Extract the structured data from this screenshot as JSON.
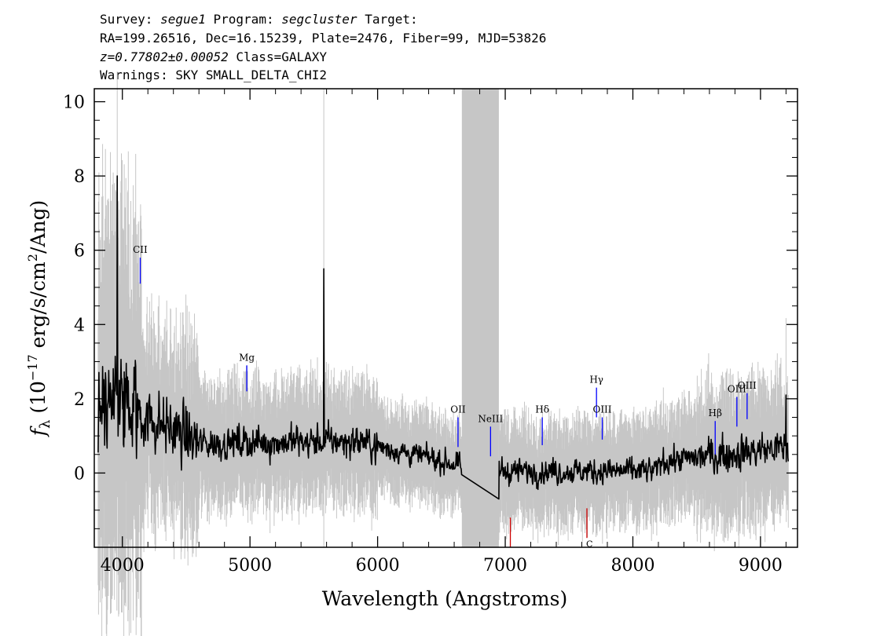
{
  "header": {
    "survey_label": "Survey:",
    "survey": "segue1",
    "program_label": "Program:",
    "program": "segcluster",
    "target_label": "Target:",
    "coords": "RA=199.26516, Dec=16.15239, Plate=2476, Fiber=99, MJD=53826",
    "redshift": "z=0.77802±0.00052",
    "class": "Class=GALAXY",
    "warnings": "Warnings: SKY SMALL_DELTA_CHI2"
  },
  "chart_data": {
    "type": "line",
    "xlabel": "Wavelength (Angstroms)",
    "ylabel_parts": {
      "f": "f",
      "sub": "λ",
      "open": " (10",
      "exp1": "−17",
      "mid": " erg/s/cm",
      "exp2": "2",
      "close": "/Ang)"
    },
    "xlim": [
      3780,
      9290
    ],
    "ylim": [
      -2.0,
      10.35
    ],
    "xticks": [
      4000,
      5000,
      6000,
      7000,
      8000,
      9000
    ],
    "yticks": [
      0,
      2,
      4,
      6,
      8,
      10
    ],
    "masked_region": [
      6660,
      6950
    ],
    "colors": {
      "flux": "#000000",
      "error": "#c6c6c6",
      "mask": "#c6c6c6",
      "emission": "#0000ff",
      "absorption": "#cc0000"
    },
    "spectrum_x_range": [
      3810,
      9220
    ],
    "spectrum_features": [
      {
        "x": 3960,
        "y": 8.0
      },
      {
        "x": 5578,
        "y": 5.5
      },
      {
        "x": 6650,
        "y": 0.15
      },
      {
        "x": 6950,
        "y": -0.7
      },
      {
        "x": 9200,
        "y": 2.1
      }
    ],
    "lines": [
      {
        "label": "CII",
        "x": 4140,
        "y0": 5.1,
        "y1": 5.8,
        "color": "#0000ff"
      },
      {
        "label": "Mg",
        "x": 4975,
        "y0": 2.2,
        "y1": 2.9,
        "color": "#0000ff"
      },
      {
        "label": "OII",
        "x": 6630,
        "y0": 0.7,
        "y1": 1.5,
        "color": "#0000ff"
      },
      {
        "label": "NeIII",
        "x": 6885,
        "y0": 0.45,
        "y1": 1.25,
        "color": "#0000ff"
      },
      {
        "label": "Hδ",
        "x": 7290,
        "y0": 0.75,
        "y1": 1.5,
        "color": "#0000ff"
      },
      {
        "label": "Hγ",
        "x": 7715,
        "y0": 1.5,
        "y1": 2.3,
        "color": "#0000ff"
      },
      {
        "label": "OIII",
        "x": 7760,
        "y0": 0.9,
        "y1": 1.5,
        "color": "#0000ff"
      },
      {
        "label": "Hβ",
        "x": 8645,
        "y0": 0.5,
        "y1": 1.4,
        "color": "#0000ff"
      },
      {
        "label": "OIII",
        "x": 8815,
        "y0": 1.25,
        "y1": 2.05,
        "color": "#0000ff"
      },
      {
        "label": "OIII",
        "x": 8895,
        "y0": 1.45,
        "y1": 2.15,
        "color": "#0000ff"
      },
      {
        "label": "",
        "x": 7040,
        "y0": -2.0,
        "y1": -1.2,
        "color": "#cc0000"
      },
      {
        "label": "",
        "x": 7640,
        "y0": -1.75,
        "y1": -0.95,
        "color": "#cc0000"
      }
    ],
    "extra_labels": [
      {
        "text": "C",
        "x": 7660,
        "y": -1.95
      }
    ]
  }
}
